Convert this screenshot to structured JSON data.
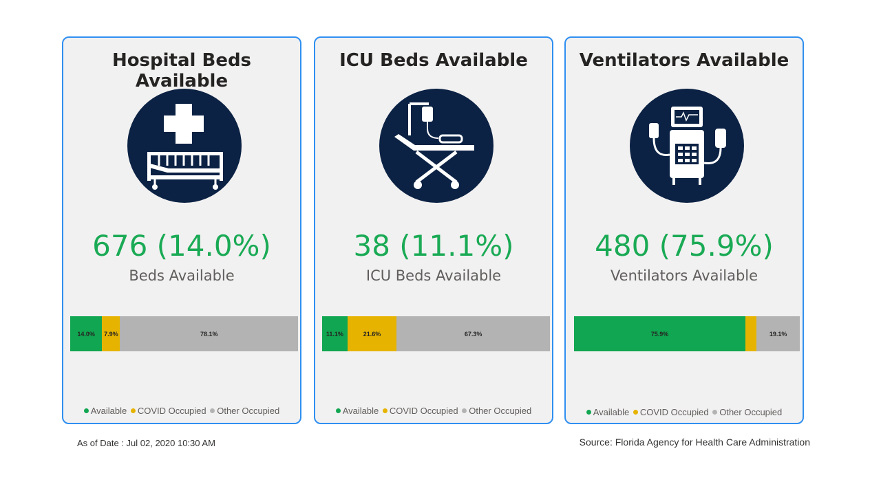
{
  "colors": {
    "available": "#11a651",
    "covid": "#e6b400",
    "other": "#b3b3b3",
    "accent": "#2f8ff0",
    "value": "#1aaa55"
  },
  "cards": [
    {
      "title": "Hospital Beds Available",
      "icon": "hospital-bed-icon",
      "value": "676 (14.0%)",
      "sublabel": "Beds Available",
      "segments": [
        {
          "key": "available",
          "pct": 14.0,
          "label": "14.0%"
        },
        {
          "key": "covid",
          "pct": 7.9,
          "label": "7.9%"
        },
        {
          "key": "other",
          "pct": 78.1,
          "label": "78.1%"
        }
      ]
    },
    {
      "title": "ICU Beds Available",
      "icon": "icu-bed-icon",
      "value": "38 (11.1%)",
      "sublabel": "ICU Beds Available",
      "segments": [
        {
          "key": "available",
          "pct": 11.1,
          "label": "11.1%"
        },
        {
          "key": "covid",
          "pct": 21.6,
          "label": "21.6%"
        },
        {
          "key": "other",
          "pct": 67.3,
          "label": "67.3%"
        }
      ]
    },
    {
      "title": "Ventilators Available",
      "icon": "ventilator-icon",
      "value": "480 (75.9%)",
      "sublabel": "Ventilators Available",
      "segments": [
        {
          "key": "available",
          "pct": 75.9,
          "label": "75.9%"
        },
        {
          "key": "covid",
          "pct": 5.0,
          "label": ""
        },
        {
          "key": "other",
          "pct": 19.1,
          "label": "19.1%"
        }
      ]
    }
  ],
  "legend": {
    "available": "Available",
    "covid": "COVID Occupied",
    "other": "Other Occupied"
  },
  "footer": {
    "as_of": "As of Date : Jul 02, 2020 10:30 AM",
    "source": "Source: Florida Agency for Health Care Administration"
  }
}
